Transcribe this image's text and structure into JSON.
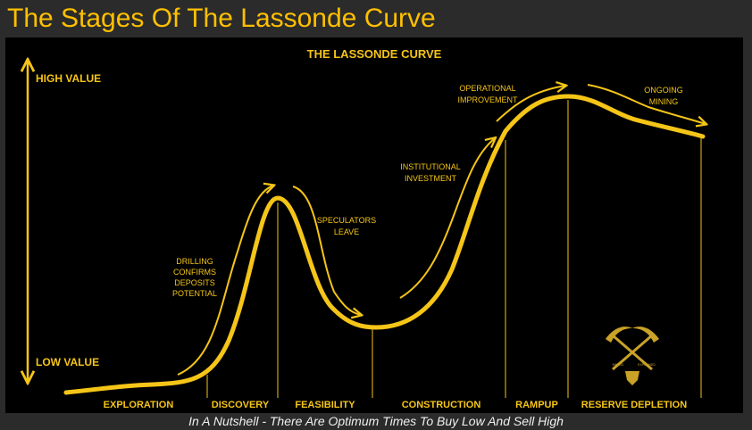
{
  "page_title": "The Stages Of The Lassonde Curve",
  "caption": "In A Nutshell - There Are Optimum Times To Buy Low And Sell High",
  "diagram": {
    "heading": "THE LASSONDE CURVE",
    "axis": {
      "high": "HIGH VALUE",
      "low": "LOW VALUE"
    },
    "stages": [
      "EXPLORATION",
      "DISCOVERY",
      "FEASIBILITY",
      "CONSTRUCTION",
      "RAMPUP",
      "RESERVE DEPLETION"
    ],
    "annotations": {
      "drilling": [
        "DRILLING",
        "CONFIRMS",
        "DEPOSITS",
        "POTENTIAL"
      ],
      "speculators": [
        "SPECULATORS",
        "LEAVE"
      ],
      "institutional": [
        "INSTITUTIONAL",
        "INVESTMENT"
      ],
      "operational": [
        "OPERATIONAL",
        "IMPROVEMENT"
      ],
      "ongoing": [
        "ONGOING",
        "MINING"
      ]
    },
    "logo_text": [
      "MINING",
      "EXPLAINED"
    ]
  },
  "colors": {
    "accent": "#f5c518",
    "title": "#ffc000",
    "background": "#000000",
    "frame": "#2b2b2b",
    "caption": "#f0f0f0"
  }
}
